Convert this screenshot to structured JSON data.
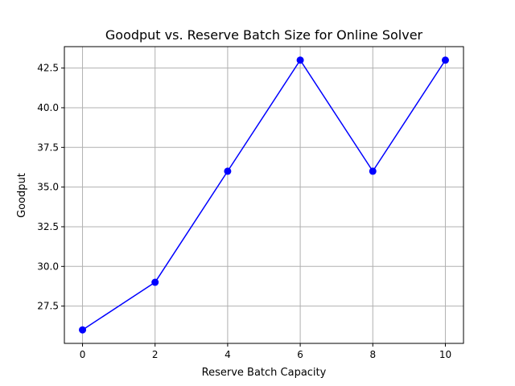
{
  "chart_data": {
    "type": "line",
    "title": "Goodput vs. Reserve Batch Size for Online Solver",
    "xlabel": "Reserve Batch Capacity",
    "ylabel": "Goodput",
    "x": [
      0,
      2,
      4,
      6,
      8,
      10
    ],
    "series": [
      {
        "values": [
          26,
          29,
          36,
          43,
          36,
          43
        ],
        "color": "#0000ff",
        "marker": "circle"
      }
    ],
    "xlim": [
      -0.5,
      10.5
    ],
    "ylim": [
      25.15,
      43.85
    ],
    "xticks": [
      0,
      2,
      4,
      6,
      8,
      10
    ],
    "xtick_labels": [
      "0",
      "2",
      "4",
      "6",
      "8",
      "10"
    ],
    "yticks": [
      27.5,
      30.0,
      32.5,
      35.0,
      37.5,
      40.0,
      42.5
    ],
    "ytick_labels": [
      "27.5",
      "30.0",
      "32.5",
      "35.0",
      "37.5",
      "40.0",
      "42.5"
    ],
    "grid": true,
    "grid_color": "#b0b0b0"
  }
}
